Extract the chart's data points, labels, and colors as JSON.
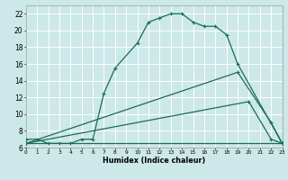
{
  "xlabel": "Humidex (Indice chaleur)",
  "xlim": [
    0,
    23
  ],
  "ylim": [
    6,
    23
  ],
  "yticks": [
    6,
    8,
    10,
    12,
    14,
    16,
    18,
    20,
    22
  ],
  "xticks": [
    0,
    1,
    2,
    3,
    4,
    5,
    6,
    7,
    8,
    9,
    10,
    11,
    12,
    13,
    14,
    15,
    16,
    17,
    18,
    19,
    20,
    21,
    22,
    23
  ],
  "bg_color": "#cce8e8",
  "grid_color": "#ffffff",
  "line_color": "#1a6b5a",
  "curve1_x": [
    0,
    1,
    2,
    3,
    4,
    5,
    6,
    7,
    8,
    10,
    11,
    12,
    13,
    14,
    15,
    16,
    17,
    18,
    19,
    23
  ],
  "curve1_y": [
    7.0,
    7.0,
    6.5,
    6.5,
    6.5,
    7.0,
    7.0,
    12.5,
    15.5,
    18.5,
    21.0,
    21.5,
    22.0,
    22.0,
    21.0,
    20.5,
    20.5,
    19.5,
    16.0,
    6.5
  ],
  "curve2_x": [
    0,
    19,
    22,
    23
  ],
  "curve2_y": [
    6.5,
    15.0,
    9.0,
    6.5
  ],
  "curve3_x": [
    0,
    20,
    22,
    23
  ],
  "curve3_y": [
    6.5,
    11.5,
    7.0,
    6.5
  ],
  "curve4_x": [
    0,
    13,
    23
  ],
  "curve4_y": [
    6.5,
    6.5,
    6.5
  ]
}
